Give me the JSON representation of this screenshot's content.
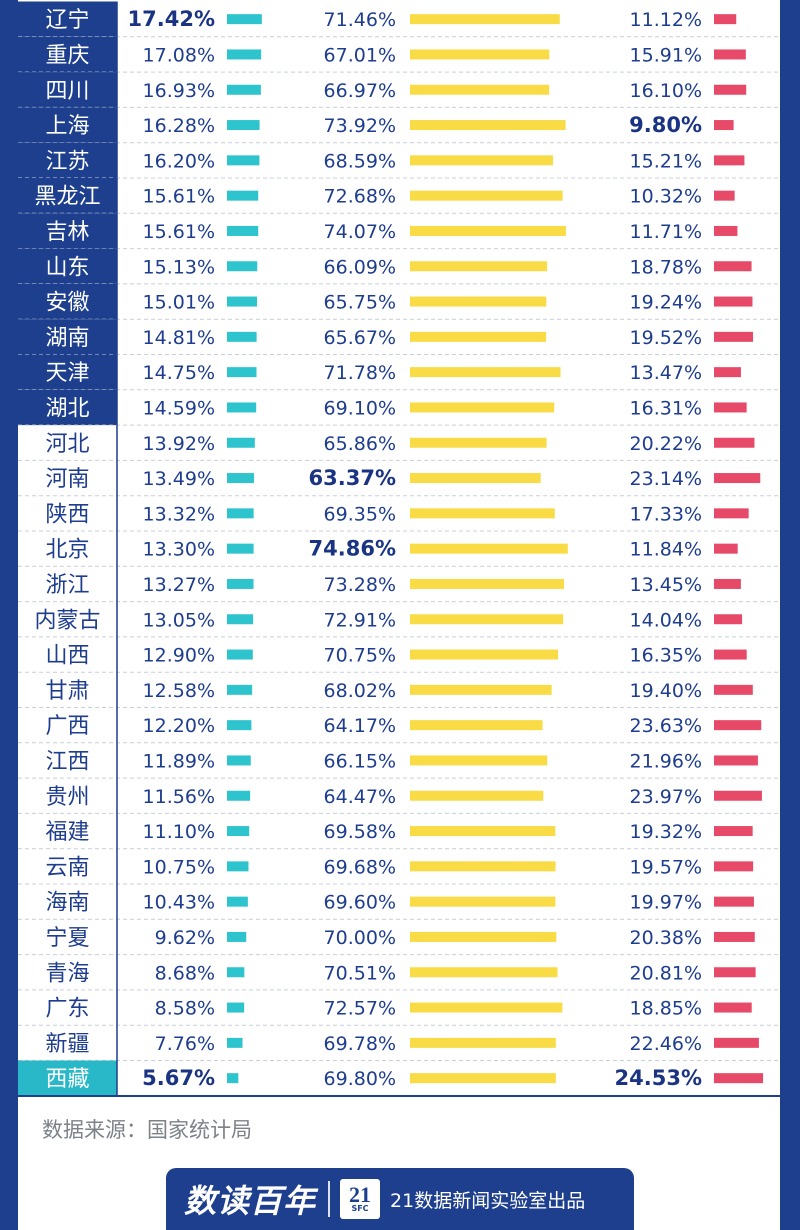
{
  "colors": {
    "frame_blue": "#1d3f8e",
    "highlight_row": "#29b8c7",
    "bar_col1": "#2ec4cd",
    "bar_col2": "#f8db45",
    "bar_col3": "#e64a68",
    "value_text": "#1e3d8f",
    "bold_text": "#1a3483"
  },
  "chart_data": {
    "type": "table",
    "columns": [
      "",
      "",
      "",
      ""
    ],
    "rows": [
      {
        "region": "辽宁",
        "v1": "17.42%",
        "v2": "71.46%",
        "v3": "11.12%"
      },
      {
        "region": "重庆",
        "v1": "17.08%",
        "v2": "67.01%",
        "v3": "15.91%"
      },
      {
        "region": "四川",
        "v1": "16.93%",
        "v2": "66.97%",
        "v3": "16.10%"
      },
      {
        "region": "上海",
        "v1": "16.28%",
        "v2": "73.92%",
        "v3": "9.80%"
      },
      {
        "region": "江苏",
        "v1": "16.20%",
        "v2": "68.59%",
        "v3": "15.21%"
      },
      {
        "region": "黑龙江",
        "v1": "15.61%",
        "v2": "72.68%",
        "v3": "10.32%"
      },
      {
        "region": "吉林",
        "v1": "15.61%",
        "v2": "74.07%",
        "v3": "11.71%"
      },
      {
        "region": "山东",
        "v1": "15.13%",
        "v2": "66.09%",
        "v3": "18.78%"
      },
      {
        "region": "安徽",
        "v1": "15.01%",
        "v2": "65.75%",
        "v3": "19.24%"
      },
      {
        "region": "湖南",
        "v1": "14.81%",
        "v2": "65.67%",
        "v3": "19.52%"
      },
      {
        "region": "天津",
        "v1": "14.75%",
        "v2": "71.78%",
        "v3": "13.47%"
      },
      {
        "region": "湖北",
        "v1": "14.59%",
        "v2": "69.10%",
        "v3": "16.31%"
      },
      {
        "region": "河北",
        "v1": "13.92%",
        "v2": "65.86%",
        "v3": "20.22%"
      },
      {
        "region": "河南",
        "v1": "13.49%",
        "v2": "63.37%",
        "v3": "23.14%"
      },
      {
        "region": "陕西",
        "v1": "13.32%",
        "v2": "69.35%",
        "v3": "17.33%"
      },
      {
        "region": "北京",
        "v1": "13.30%",
        "v2": "74.86%",
        "v3": "11.84%"
      },
      {
        "region": "浙江",
        "v1": "13.27%",
        "v2": "73.28%",
        "v3": "13.45%"
      },
      {
        "region": "内蒙古",
        "v1": "13.05%",
        "v2": "72.91%",
        "v3": "14.04%"
      },
      {
        "region": "山西",
        "v1": "12.90%",
        "v2": "70.75%",
        "v3": "16.35%"
      },
      {
        "region": "甘肃",
        "v1": "12.58%",
        "v2": "68.02%",
        "v3": "19.40%"
      },
      {
        "region": "广西",
        "v1": "12.20%",
        "v2": "64.17%",
        "v3": "23.63%"
      },
      {
        "region": "江西",
        "v1": "11.89%",
        "v2": "66.15%",
        "v3": "21.96%"
      },
      {
        "region": "贵州",
        "v1": "11.56%",
        "v2": "64.47%",
        "v3": "23.97%"
      },
      {
        "region": "福建",
        "v1": "11.10%",
        "v2": "69.58%",
        "v3": "19.32%"
      },
      {
        "region": "云南",
        "v1": "10.75%",
        "v2": "69.68%",
        "v3": "19.57%"
      },
      {
        "region": "海南",
        "v1": "10.43%",
        "v2": "69.60%",
        "v3": "19.97%"
      },
      {
        "region": "宁夏",
        "v1": "9.62%",
        "v2": "70.00%",
        "v3": "20.38%"
      },
      {
        "region": "青海",
        "v1": "8.68%",
        "v2": "70.51%",
        "v3": "20.81%"
      },
      {
        "region": "广东",
        "v1": "8.58%",
        "v2": "72.57%",
        "v3": "18.85%"
      },
      {
        "region": "新疆",
        "v1": "7.76%",
        "v2": "69.78%",
        "v3": "22.46%"
      },
      {
        "region": "西藏",
        "v1": "5.67%",
        "v2": "69.80%",
        "v3": "24.53%"
      }
    ],
    "series": [
      {
        "values": [
          17.42,
          17.08,
          16.93,
          16.28,
          16.2,
          15.61,
          15.61,
          15.13,
          15.01,
          14.81,
          14.75,
          14.59,
          13.92,
          13.49,
          13.32,
          13.3,
          13.27,
          13.05,
          12.9,
          12.58,
          12.2,
          11.89,
          11.56,
          11.1,
          10.75,
          10.43,
          9.62,
          8.68,
          8.58,
          7.76,
          5.67
        ]
      },
      {
        "values": [
          71.46,
          67.01,
          66.97,
          73.92,
          68.59,
          72.68,
          74.07,
          66.09,
          65.75,
          65.67,
          71.78,
          69.1,
          65.86,
          63.37,
          69.35,
          74.86,
          73.28,
          72.91,
          70.75,
          68.02,
          64.17,
          66.15,
          64.47,
          69.58,
          69.68,
          69.6,
          70.0,
          70.51,
          72.57,
          69.78,
          69.8
        ]
      },
      {
        "values": [
          11.12,
          15.91,
          16.1,
          9.8,
          15.21,
          10.32,
          11.71,
          18.78,
          19.24,
          19.52,
          13.47,
          16.31,
          20.22,
          23.14,
          17.33,
          11.84,
          13.45,
          14.04,
          16.35,
          19.4,
          23.63,
          21.96,
          23.97,
          19.32,
          19.57,
          19.97,
          20.38,
          20.81,
          18.85,
          22.46,
          24.53
        ]
      }
    ],
    "bold_values": [
      {
        "row": 0,
        "col": "v1"
      },
      {
        "row": 30,
        "col": "v1"
      },
      {
        "row": 13,
        "col": "v2"
      },
      {
        "row": 15,
        "col": "v2"
      },
      {
        "row": 3,
        "col": "v3"
      },
      {
        "row": 30,
        "col": "v3"
      }
    ],
    "dark_label_rows": 12,
    "highlight_label_row": 30
  },
  "footer": {
    "source": "数据来源：国家统计局",
    "brand": "数读百年",
    "logo_number": "21",
    "logo_sub": "SFC",
    "producer": "21数据新闻实验室出品"
  }
}
